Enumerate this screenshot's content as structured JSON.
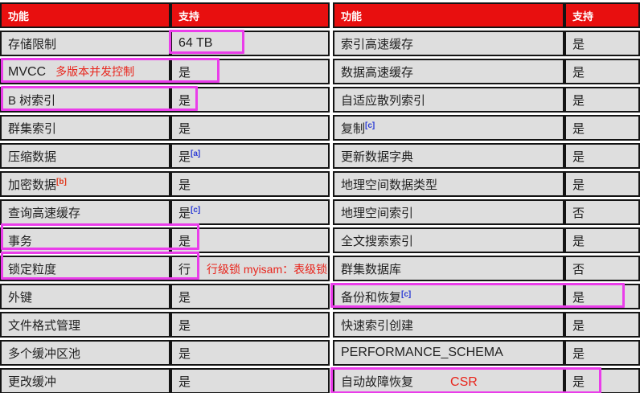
{
  "headers": {
    "feature": "功能",
    "support": "支持"
  },
  "colors": {
    "header_bg": "#e80f0f",
    "header_text": "#ffffff",
    "cell_bg": "#dedede",
    "cell_border": "#141414",
    "annotation_box": "#ea3dea",
    "annotation_text": "#e8251c",
    "footnote_blue": "#2b3bd4",
    "footnote_red": "#e0391e"
  },
  "left_table": {
    "rows": [
      {
        "feature": "存储限制",
        "support": "64 TB"
      },
      {
        "feature": "MVCC",
        "feature_note": "多版本并发控制",
        "support": "是"
      },
      {
        "feature": "B 树索引",
        "support": "是"
      },
      {
        "feature": "群集索引",
        "support": "是"
      },
      {
        "feature": "压缩数据",
        "support": "是",
        "support_sup": {
          "text": "[a]",
          "color": "#2b3bd4"
        }
      },
      {
        "feature": "加密数据",
        "feature_sup": {
          "text": "[b]",
          "color": "#e0391e"
        },
        "support": "是"
      },
      {
        "feature": "查询高速缓存",
        "support": "是",
        "support_sup": {
          "text": "[c]",
          "color": "#2b3bd4"
        }
      },
      {
        "feature": "事务",
        "support": "是"
      },
      {
        "feature": "锁定粒度",
        "support": "行",
        "support_note": "行级锁 myisam：表级锁"
      },
      {
        "feature": "外键",
        "support": "是"
      },
      {
        "feature": "文件格式管理",
        "support": "是"
      },
      {
        "feature": "多个缓冲区池",
        "support": "是"
      },
      {
        "feature": "更改缓冲",
        "support": "是"
      }
    ]
  },
  "right_table": {
    "rows": [
      {
        "feature": "索引高速缓存",
        "support": "是"
      },
      {
        "feature": "数据高速缓存",
        "support": "是"
      },
      {
        "feature": "自适应散列索引",
        "support": "是"
      },
      {
        "feature": "复制",
        "feature_sup": {
          "text": "[c]",
          "color": "#2b3bd4"
        },
        "support": "是"
      },
      {
        "feature": "更新数据字典",
        "support": "是"
      },
      {
        "feature": "地理空间数据类型",
        "support": "是"
      },
      {
        "feature": "地理空间索引",
        "support": "否"
      },
      {
        "feature": "全文搜索索引",
        "support": "是"
      },
      {
        "feature": "群集数据库",
        "support": "否"
      },
      {
        "feature": "备份和恢复",
        "feature_sup": {
          "text": "[c]",
          "color": "#2b3bd4"
        },
        "support": "是"
      },
      {
        "feature": "快速索引创建",
        "support": "是"
      },
      {
        "feature": "PERFORMANCE_SCHEMA",
        "support": "是"
      },
      {
        "feature": "自动故障恢复",
        "feature_note": "CSR",
        "support": "是"
      }
    ]
  }
}
